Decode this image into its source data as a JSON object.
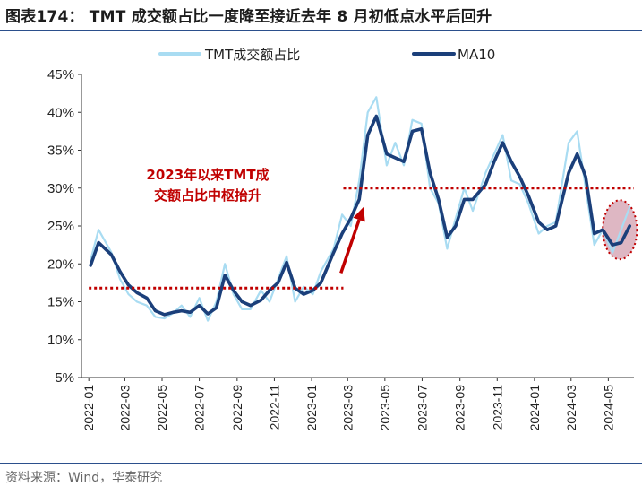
{
  "header": {
    "title": "图表174：  TMT 成交额占比一度降至接近去年 8 月初低点水平后回升"
  },
  "footer": {
    "source": "资料来源：Wind，华泰研究"
  },
  "colors": {
    "raw": "#a9dcf2",
    "ma": "#1b3f7a",
    "annotation": "#c00000",
    "highlight_fill": "#d8aab8",
    "highlight_stroke": "#c00000",
    "rule": "#2b4f8c"
  },
  "chart_data": {
    "type": "line",
    "title": "",
    "xlabel": "",
    "ylabel": "",
    "ylim": [
      5,
      45
    ],
    "yticks": [
      5,
      10,
      15,
      20,
      25,
      30,
      35,
      40,
      45
    ],
    "ytick_labels": [
      "5%",
      "10%",
      "15%",
      "20%",
      "25%",
      "30%",
      "35%",
      "40%",
      "45%"
    ],
    "x_ticks": [
      "2022-01",
      "2022-03",
      "2022-05",
      "2022-07",
      "2022-09",
      "2022-11",
      "2023-01",
      "2023-03",
      "2023-05",
      "2023-07",
      "2023-09",
      "2023-11",
      "2024-01",
      "2024-03",
      "2024-05"
    ],
    "legend": {
      "placement": "top-center"
    },
    "grid": false,
    "series": [
      {
        "name": "TMT成交额占比",
        "style": "thin light-blue line",
        "x": [
          "2022-01-04",
          "2022-01-17",
          "2022-02-07",
          "2022-02-21",
          "2022-03-07",
          "2022-03-21",
          "2022-04-06",
          "2022-04-20",
          "2022-05-05",
          "2022-05-19",
          "2022-06-02",
          "2022-06-16",
          "2022-07-01",
          "2022-07-15",
          "2022-07-29",
          "2022-08-12",
          "2022-08-26",
          "2022-09-09",
          "2022-09-23",
          "2022-10-10",
          "2022-10-24",
          "2022-11-07",
          "2022-11-21",
          "2022-12-05",
          "2022-12-19",
          "2023-01-03",
          "2023-01-16",
          "2023-02-06",
          "2023-02-20",
          "2023-03-06",
          "2023-03-20",
          "2023-04-03",
          "2023-04-17",
          "2023-05-04",
          "2023-05-18",
          "2023-06-01",
          "2023-06-15",
          "2023-06-30",
          "2023-07-14",
          "2023-07-28",
          "2023-08-11",
          "2023-08-25",
          "2023-09-08",
          "2023-09-22",
          "2023-10-13",
          "2023-10-27",
          "2023-11-10",
          "2023-11-24",
          "2023-12-08",
          "2023-12-22",
          "2024-01-08",
          "2024-01-22",
          "2024-02-05",
          "2024-02-26",
          "2024-03-11",
          "2024-03-25",
          "2024-04-08",
          "2024-04-22",
          "2024-05-08",
          "2024-05-22",
          "2024-06-05"
        ],
        "values": [
          20.5,
          24.5,
          21.5,
          18.0,
          16.0,
          15.0,
          14.5,
          13.0,
          12.8,
          13.5,
          14.5,
          13.0,
          15.5,
          12.5,
          15.0,
          20.0,
          16.0,
          14.0,
          14.0,
          16.5,
          15.0,
          18.0,
          21.0,
          15.0,
          17.0,
          16.0,
          19.0,
          22.0,
          26.5,
          25.0,
          31.0,
          40.0,
          42.0,
          33.0,
          36.0,
          33.0,
          39.0,
          38.5,
          30.0,
          28.0,
          22.0,
          26.0,
          30.0,
          27.0,
          32.0,
          34.5,
          37.0,
          31.0,
          30.5,
          28.0,
          24.0,
          25.0,
          25.5,
          36.0,
          37.5,
          30.0,
          22.5,
          24.5,
          21.5,
          24.5,
          27.5
        ]
      },
      {
        "name": "MA10",
        "style": "thick dark-blue line",
        "x": [
          "2022-01-04",
          "2022-01-17",
          "2022-02-07",
          "2022-02-21",
          "2022-03-07",
          "2022-03-21",
          "2022-04-06",
          "2022-04-20",
          "2022-05-05",
          "2022-05-19",
          "2022-06-02",
          "2022-06-16",
          "2022-07-01",
          "2022-07-15",
          "2022-07-29",
          "2022-08-12",
          "2022-08-26",
          "2022-09-09",
          "2022-09-23",
          "2022-10-10",
          "2022-10-24",
          "2022-11-07",
          "2022-11-21",
          "2022-12-05",
          "2022-12-19",
          "2023-01-03",
          "2023-01-16",
          "2023-02-06",
          "2023-02-20",
          "2023-03-06",
          "2023-03-20",
          "2023-04-03",
          "2023-04-17",
          "2023-05-04",
          "2023-05-18",
          "2023-06-01",
          "2023-06-15",
          "2023-06-30",
          "2023-07-14",
          "2023-07-28",
          "2023-08-11",
          "2023-08-25",
          "2023-09-08",
          "2023-09-22",
          "2023-10-13",
          "2023-10-27",
          "2023-11-10",
          "2023-11-24",
          "2023-12-08",
          "2023-12-22",
          "2024-01-08",
          "2024-01-22",
          "2024-02-05",
          "2024-02-26",
          "2024-03-11",
          "2024-03-25",
          "2024-04-08",
          "2024-04-22",
          "2024-05-08",
          "2024-05-22",
          "2024-06-05"
        ],
        "values": [
          19.8,
          22.8,
          21.2,
          19.0,
          17.2,
          16.2,
          15.5,
          13.8,
          13.3,
          13.6,
          13.8,
          13.6,
          14.5,
          13.4,
          14.2,
          18.5,
          16.5,
          15.0,
          14.5,
          15.2,
          16.5,
          17.5,
          20.2,
          16.8,
          16.0,
          16.5,
          17.5,
          21.5,
          24.0,
          26.0,
          28.5,
          37.0,
          39.5,
          34.5,
          34.0,
          33.5,
          37.5,
          37.8,
          32.0,
          28.5,
          23.5,
          25.0,
          28.5,
          28.5,
          30.5,
          33.5,
          36.0,
          33.5,
          31.5,
          29.0,
          25.5,
          24.5,
          25.0,
          32.0,
          34.5,
          31.5,
          24.0,
          24.5,
          22.5,
          22.8,
          25.0
        ]
      }
    ],
    "annotations": [
      {
        "type": "hline",
        "y": 16.8,
        "from": "2022-01-01",
        "to": "2023-02-22",
        "style": "dotted",
        "color": "#c00000"
      },
      {
        "type": "hline",
        "y": 30.0,
        "from": "2023-02-22",
        "to": "2024-06-12",
        "style": "dotted",
        "color": "#c00000"
      },
      {
        "type": "arrow",
        "from": {
          "x": "2023-02-18",
          "y": 18.8
        },
        "to": {
          "x": "2023-03-27",
          "y": 27.5
        },
        "color": "#c00000"
      },
      {
        "type": "text",
        "lines": [
          "2023年以来TMT成",
          "交额占比中枢抬升"
        ],
        "color": "#c00000"
      },
      {
        "type": "ellipse",
        "cx": "2024-05-20",
        "cy": 24.5,
        "rx_days": 28,
        "ry": 3.9,
        "color": "#c00000"
      }
    ]
  }
}
